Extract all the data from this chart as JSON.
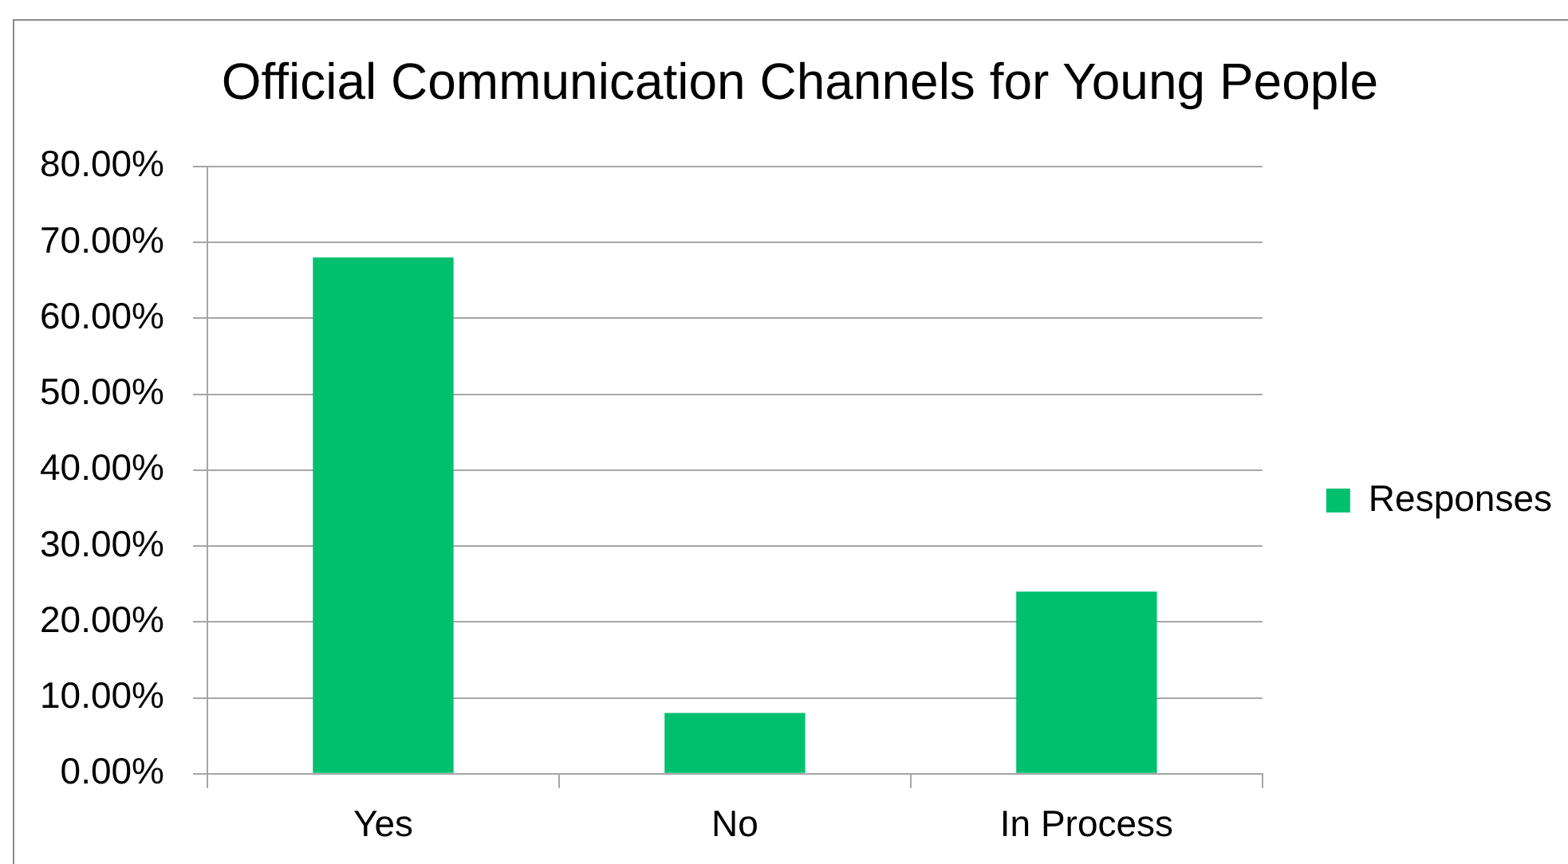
{
  "chart_data": {
    "type": "bar",
    "title": "Official Communication Channels for Young People",
    "categories": [
      "Yes",
      "No",
      "In Process"
    ],
    "series": [
      {
        "name": "Responses",
        "color": "#00c070",
        "values": [
          68,
          8,
          24
        ]
      }
    ],
    "ylim": [
      0,
      80
    ],
    "yticks": [
      {
        "value": 0,
        "label": "0.00%"
      },
      {
        "value": 10,
        "label": "10.00%"
      },
      {
        "value": 20,
        "label": "20.00%"
      },
      {
        "value": 30,
        "label": "30.00%"
      },
      {
        "value": 40,
        "label": "40.00%"
      },
      {
        "value": 50,
        "label": "50.00%"
      },
      {
        "value": 60,
        "label": "60.00%"
      },
      {
        "value": 70,
        "label": "70.00%"
      },
      {
        "value": 80,
        "label": "80.00%"
      }
    ],
    "grid": "y",
    "legend": "right"
  }
}
